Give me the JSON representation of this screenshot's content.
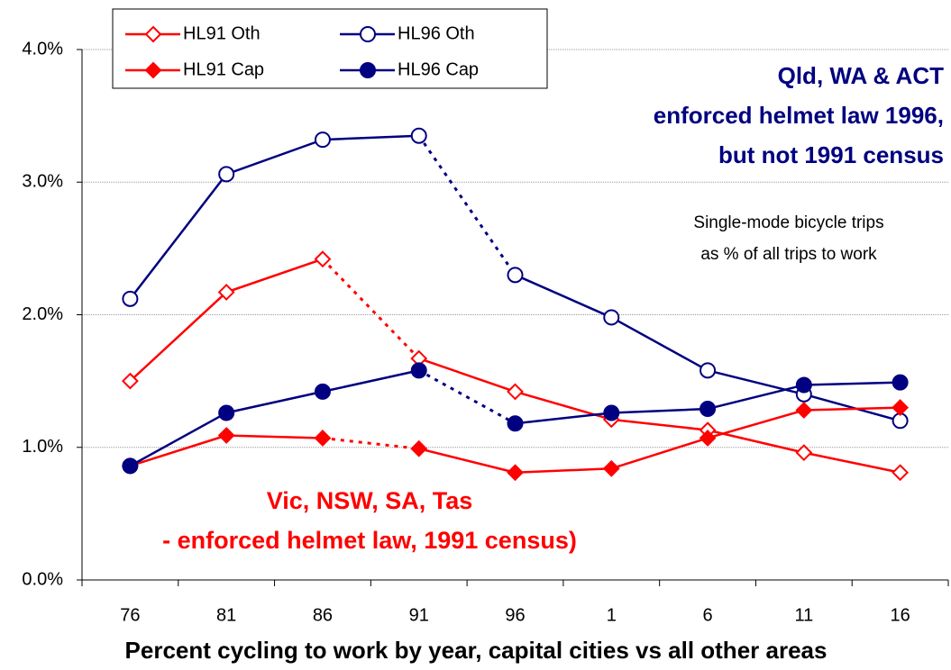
{
  "chart_data": {
    "type": "line",
    "title": "Percent cycling to work by year, capital cities vs all other areas",
    "categories": [
      "76",
      "81",
      "86",
      "91",
      "96",
      "1",
      "6",
      "11",
      "16"
    ],
    "ylim": [
      0,
      4
    ],
    "yticks": [
      {
        "value": 0,
        "label": "0.0%"
      },
      {
        "value": 1,
        "label": "1.0%"
      },
      {
        "value": 2,
        "label": "2.0%"
      },
      {
        "value": 3,
        "label": "3.0%"
      },
      {
        "value": 4,
        "label": "4.0%"
      }
    ],
    "grid": true,
    "legend": "top-left",
    "series": [
      {
        "name": "HL91 Oth",
        "color": "#ff0000",
        "marker": "diamond",
        "filled": false,
        "dashed_segment": 2,
        "values": [
          1.5,
          2.17,
          2.42,
          1.67,
          1.42,
          1.21,
          1.13,
          0.96,
          0.81
        ]
      },
      {
        "name": "HL96 Oth",
        "color": "#000080",
        "marker": "circle",
        "filled": false,
        "dashed_segment": 3,
        "values": [
          2.12,
          3.06,
          3.32,
          3.35,
          2.3,
          1.98,
          1.58,
          1.4,
          1.2
        ]
      },
      {
        "name": "HL91 Cap",
        "color": "#ff0000",
        "marker": "diamond",
        "filled": true,
        "dashed_segment": 2,
        "values": [
          0.86,
          1.09,
          1.07,
          0.99,
          0.81,
          0.84,
          1.07,
          1.28,
          1.3
        ]
      },
      {
        "name": "HL96 Cap",
        "color": "#000080",
        "marker": "circle",
        "filled": true,
        "dashed_segment": 3,
        "values": [
          0.86,
          1.26,
          1.42,
          1.58,
          1.18,
          1.26,
          1.29,
          1.47,
          1.49
        ]
      }
    ],
    "annotations": [
      {
        "text": [
          "Qld, WA & ACT",
          "enforced helmet law 1996,",
          "but not 1991 census"
        ],
        "color": "#000080"
      },
      {
        "text": [
          "Single-mode bicycle trips",
          "as % of all trips to work"
        ],
        "color": "#000000"
      },
      {
        "text": [
          "Vic, NSW, SA, Tas",
          "- enforced helmet law, 1991 census)"
        ],
        "color": "#ff0000"
      }
    ]
  }
}
